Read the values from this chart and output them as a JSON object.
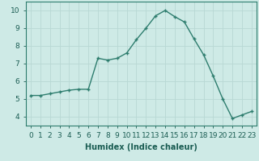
{
  "x": [
    0,
    1,
    2,
    3,
    4,
    5,
    6,
    7,
    8,
    9,
    10,
    11,
    12,
    13,
    14,
    15,
    16,
    17,
    18,
    19,
    20,
    21,
    22,
    23
  ],
  "y": [
    5.2,
    5.2,
    5.3,
    5.4,
    5.5,
    5.55,
    5.55,
    7.3,
    7.2,
    7.3,
    7.6,
    8.35,
    9.0,
    9.7,
    10.0,
    9.65,
    9.35,
    8.4,
    7.5,
    6.3,
    5.0,
    3.9,
    4.1,
    4.3
  ],
  "line_color": "#2e7d6e",
  "marker": "+",
  "bg_color": "#ceeae6",
  "grid_color": "#b8d8d4",
  "xlabel": "Humidex (Indice chaleur)",
  "xlim": [
    -0.5,
    23.5
  ],
  "ylim": [
    3.5,
    10.5
  ],
  "yticks": [
    4,
    5,
    6,
    7,
    8,
    9,
    10
  ],
  "xticks": [
    0,
    1,
    2,
    3,
    4,
    5,
    6,
    7,
    8,
    9,
    10,
    11,
    12,
    13,
    14,
    15,
    16,
    17,
    18,
    19,
    20,
    21,
    22,
    23
  ],
  "xlabel_fontsize": 7,
  "tick_fontsize": 6.5,
  "line_width": 1.0,
  "marker_size": 3.5
}
